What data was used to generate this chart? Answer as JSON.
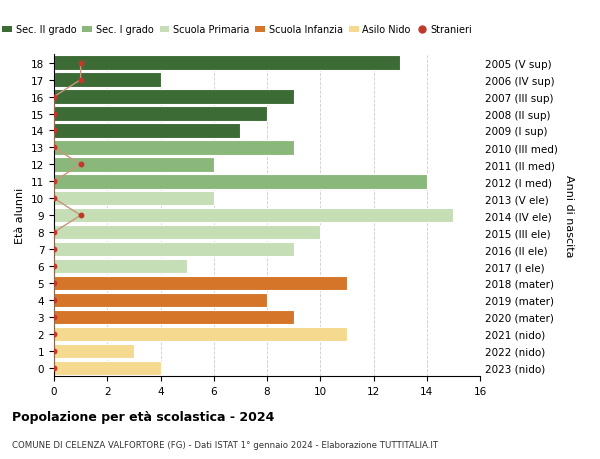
{
  "ages": [
    18,
    17,
    16,
    15,
    14,
    13,
    12,
    11,
    10,
    9,
    8,
    7,
    6,
    5,
    4,
    3,
    2,
    1,
    0
  ],
  "year_labels": [
    "2005 (V sup)",
    "2006 (IV sup)",
    "2007 (III sup)",
    "2008 (II sup)",
    "2009 (I sup)",
    "2010 (III med)",
    "2011 (II med)",
    "2012 (I med)",
    "2013 (V ele)",
    "2014 (IV ele)",
    "2015 (III ele)",
    "2016 (II ele)",
    "2017 (I ele)",
    "2018 (mater)",
    "2019 (mater)",
    "2020 (mater)",
    "2021 (nido)",
    "2022 (nido)",
    "2023 (nido)"
  ],
  "bar_values": [
    13,
    4,
    9,
    8,
    7,
    9,
    6,
    14,
    6,
    15,
    10,
    9,
    5,
    11,
    8,
    9,
    11,
    3,
    4
  ],
  "bar_colors": [
    "#3d6b35",
    "#3d6b35",
    "#3d6b35",
    "#3d6b35",
    "#3d6b35",
    "#8ab87a",
    "#8ab87a",
    "#8ab87a",
    "#c5deb5",
    "#c5deb5",
    "#c5deb5",
    "#c5deb5",
    "#c5deb5",
    "#d4752a",
    "#d4752a",
    "#d4752a",
    "#f5d98e",
    "#f5d98e",
    "#f5d98e"
  ],
  "stranieri_values": [
    1,
    1,
    0,
    0,
    0,
    0,
    1,
    0,
    0,
    1,
    0,
    0,
    0,
    0,
    0,
    0,
    0,
    0,
    0
  ],
  "stranieri_color": "#c0392b",
  "stranieri_line_color": "#c8967a",
  "legend_labels": [
    "Sec. II grado",
    "Sec. I grado",
    "Scuola Primaria",
    "Scuola Infanzia",
    "Asilo Nido",
    "Stranieri"
  ],
  "legend_colors": [
    "#3d6b35",
    "#8ab87a",
    "#c5deb5",
    "#d4752a",
    "#f5d98e",
    "#c0392b"
  ],
  "ylabel_left": "Età alunni",
  "ylabel_right": "Anni di nascita",
  "title": "Popolazione per età scolastica - 2024",
  "subtitle": "COMUNE DI CELENZA VALFORTORE (FG) - Dati ISTAT 1° gennaio 2024 - Elaborazione TUTTITALIA.IT",
  "xlim": [
    0,
    16
  ],
  "xticks": [
    0,
    2,
    4,
    6,
    8,
    10,
    12,
    14,
    16
  ],
  "background_color": "#ffffff",
  "grid_color": "#cccccc"
}
